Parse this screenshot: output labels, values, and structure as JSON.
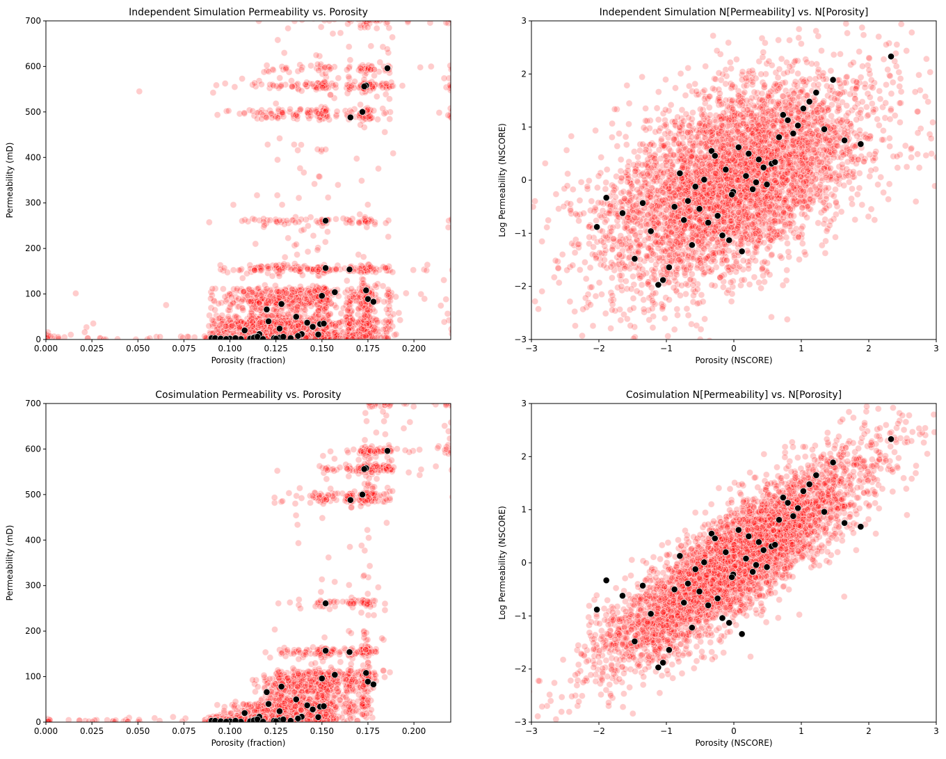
{
  "chart_data": [
    {
      "type": "scatter",
      "title": "Independent Simulation Permeability vs. Porosity",
      "xlabel": "Porosity (fraction)",
      "ylabel": "Permeability (mD)",
      "xlim": [
        0,
        0.22
      ],
      "ylim": [
        0,
        700
      ],
      "xticks": [
        "0.000",
        "0.025",
        "0.050",
        "0.075",
        "0.100",
        "0.125",
        "0.150",
        "0.175",
        "0.200"
      ],
      "yticks": [
        "0",
        "100",
        "200",
        "300",
        "400",
        "500",
        "600",
        "700"
      ],
      "grid": false,
      "series_colors": {
        "simulation": "#ff0000",
        "data": "#000000"
      },
      "data_ref": "well_porperm"
    },
    {
      "type": "scatter",
      "title": "Independent Simulation N[Permeability] vs. N[Porosity]",
      "xlabel": "Porosity (NSCORE)",
      "ylabel": "Log Permeability (NSCORE)",
      "xlim": [
        -3,
        3
      ],
      "ylim": [
        -3,
        3
      ],
      "xticks": [
        "−3",
        "−2",
        "−1",
        "0",
        "1",
        "2",
        "3"
      ],
      "yticks": [
        "−3",
        "−2",
        "−1",
        "0",
        "1",
        "2",
        "3"
      ],
      "grid": false,
      "series_colors": {
        "simulation": "#ff0000",
        "data": "#000000"
      },
      "data_ref": "well_nscore"
    },
    {
      "type": "scatter",
      "title": "Cosimulation Permeability vs. Porosity",
      "xlabel": "Porosity (fraction)",
      "ylabel": "Permeability (mD)",
      "xlim": [
        0,
        0.22
      ],
      "ylim": [
        0,
        700
      ],
      "xticks": [
        "0.000",
        "0.025",
        "0.050",
        "0.075",
        "0.100",
        "0.125",
        "0.150",
        "0.175",
        "0.200"
      ],
      "yticks": [
        "0",
        "100",
        "200",
        "300",
        "400",
        "500",
        "600",
        "700"
      ],
      "grid": false,
      "series_colors": {
        "simulation": "#ff0000",
        "data": "#000000"
      },
      "data_ref": "well_porperm"
    },
    {
      "type": "scatter",
      "title": "Cosimulation N[Permeability] vs. N[Porosity]",
      "xlabel": "Porosity (NSCORE)",
      "ylabel": "Log Permeability (NSCORE)",
      "xlim": [
        -3,
        3
      ],
      "ylim": [
        -3,
        3
      ],
      "xticks": [
        "−3",
        "−2",
        "−1",
        "0",
        "1",
        "2",
        "3"
      ],
      "yticks": [
        "−3",
        "−2",
        "−1",
        "0",
        "1",
        "2",
        "3"
      ],
      "grid": false,
      "series_colors": {
        "simulation": "#ff0000",
        "data": "#000000"
      },
      "data_ref": "well_nscore"
    }
  ],
  "well_porperm": [
    [
      0.1856,
      596
    ],
    [
      0.174,
      558
    ],
    [
      0.173,
      556
    ],
    [
      0.172,
      500
    ],
    [
      0.1655,
      488
    ],
    [
      0.152,
      261
    ],
    [
      0.152,
      157
    ],
    [
      0.165,
      154
    ],
    [
      0.157,
      104
    ],
    [
      0.174,
      108
    ],
    [
      0.175,
      89
    ],
    [
      0.178,
      83
    ],
    [
      0.15,
      96
    ],
    [
      0.128,
      78
    ],
    [
      0.12,
      66
    ],
    [
      0.121,
      40
    ],
    [
      0.127,
      24
    ],
    [
      0.136,
      50
    ],
    [
      0.142,
      37
    ],
    [
      0.145,
      28
    ],
    [
      0.149,
      34
    ],
    [
      0.151,
      35
    ],
    [
      0.148,
      11
    ],
    [
      0.139,
      12
    ],
    [
      0.137,
      8
    ],
    [
      0.108,
      20
    ],
    [
      0.116,
      12
    ],
    [
      0.114,
      6
    ],
    [
      0.09,
      3
    ],
    [
      0.092,
      3
    ],
    [
      0.095,
      2
    ],
    [
      0.1,
      2
    ],
    [
      0.106,
      1
    ],
    [
      0.111,
      2
    ],
    [
      0.113,
      4
    ],
    [
      0.115,
      6
    ],
    [
      0.118,
      1
    ],
    [
      0.124,
      3
    ],
    [
      0.127,
      4
    ],
    [
      0.129,
      6
    ],
    [
      0.133,
      3
    ],
    [
      0.125,
      2
    ],
    [
      0.103,
      3
    ],
    [
      0.098,
      1
    ]
  ],
  "well_nscore": [
    [
      2.33,
      2.33
    ],
    [
      1.47,
      1.89
    ],
    [
      1.22,
      1.65
    ],
    [
      1.12,
      1.48
    ],
    [
      1.03,
      1.35
    ],
    [
      0.73,
      1.23
    ],
    [
      0.8,
      1.13
    ],
    [
      0.95,
      1.03
    ],
    [
      0.88,
      0.88
    ],
    [
      1.34,
      0.96
    ],
    [
      0.67,
      0.81
    ],
    [
      1.64,
      0.75
    ],
    [
      1.88,
      0.68
    ],
    [
      -0.33,
      0.55
    ],
    [
      -0.28,
      0.46
    ],
    [
      0.07,
      0.62
    ],
    [
      0.22,
      0.5
    ],
    [
      0.37,
      0.39
    ],
    [
      0.56,
      0.31
    ],
    [
      0.61,
      0.34
    ],
    [
      0.44,
      0.24
    ],
    [
      -0.8,
      0.13
    ],
    [
      -0.12,
      0.2
    ],
    [
      0.18,
      0.08
    ],
    [
      0.33,
      -0.04
    ],
    [
      -0.44,
      0.01
    ],
    [
      0.49,
      -0.08
    ],
    [
      0.28,
      -0.17
    ],
    [
      -0.01,
      -0.22
    ],
    [
      -0.03,
      -0.27
    ],
    [
      -0.57,
      -0.12
    ],
    [
      -1.89,
      -0.33
    ],
    [
      -1.35,
      -0.43
    ],
    [
      -0.88,
      -0.5
    ],
    [
      -0.68,
      -0.39
    ],
    [
      -0.51,
      -0.54
    ],
    [
      -1.65,
      -0.62
    ],
    [
      -0.24,
      -0.67
    ],
    [
      -2.03,
      -0.88
    ],
    [
      -0.74,
      -0.75
    ],
    [
      -0.38,
      -0.8
    ],
    [
      -0.17,
      -1.04
    ],
    [
      -0.07,
      -1.13
    ],
    [
      -1.23,
      -0.96
    ],
    [
      -0.62,
      -1.22
    ],
    [
      0.12,
      -1.34
    ],
    [
      -1.47,
      -1.48
    ],
    [
      -0.96,
      -1.64
    ],
    [
      -1.05,
      -1.88
    ],
    [
      -1.12,
      -1.97
    ]
  ]
}
